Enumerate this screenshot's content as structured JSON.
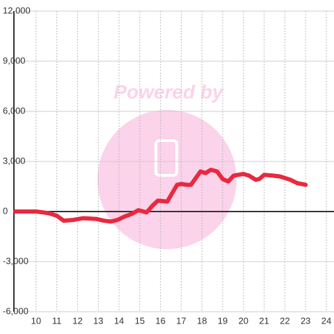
{
  "chart_data": {
    "type": "line",
    "watermark": "Powered by",
    "x": [
      9.0,
      9.5,
      10.0,
      10.33,
      10.6,
      11.0,
      11.33,
      11.8,
      12.27,
      12.6,
      12.93,
      13.27,
      13.6,
      13.93,
      14.27,
      14.6,
      14.93,
      15.33,
      15.6,
      15.87,
      16.33,
      16.8,
      17.0,
      17.27,
      17.47,
      17.93,
      18.17,
      18.43,
      18.73,
      19.0,
      19.27,
      19.53,
      20.0,
      20.27,
      20.6,
      20.77,
      21.0,
      21.43,
      21.77,
      22.27,
      22.6,
      23.0
    ],
    "series": [
      {
        "color": "#e8293f",
        "values": [
          0,
          0,
          0,
          -50,
          -100,
          -250,
          -550,
          -500,
          -400,
          -420,
          -450,
          -550,
          -600,
          -500,
          -300,
          -150,
          80,
          -50,
          330,
          650,
          600,
          1600,
          1650,
          1600,
          1600,
          2400,
          2300,
          2500,
          2400,
          1950,
          1800,
          2150,
          2250,
          2150,
          1900,
          1950,
          2200,
          2150,
          2100,
          1900,
          1700,
          1600
        ]
      }
    ],
    "xlim": [
      8.93,
      24.37
    ],
    "xticks": [
      10,
      11,
      12,
      13,
      14,
      15,
      16,
      17,
      18,
      19,
      20,
      21,
      22,
      23,
      24
    ],
    "ylim": [
      -6000,
      12000
    ],
    "yticks": [
      {
        "value": -6000,
        "label": "-6,000"
      },
      {
        "value": -3000,
        "label": "-3,000"
      },
      0,
      {
        "value": 3000,
        "label": "3,000"
      },
      {
        "value": 6000,
        "label": "6,000"
      },
      {
        "value": 9000,
        "label": "9,000"
      },
      {
        "value": 12000,
        "label": "12,000"
      }
    ],
    "grid": true
  }
}
